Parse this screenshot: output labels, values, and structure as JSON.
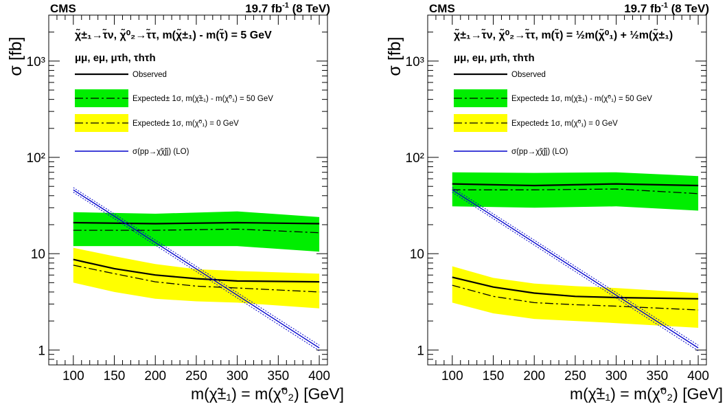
{
  "chart_data": [
    {
      "type": "line",
      "experiment": "CMS",
      "luminosity": "19.7 fb",
      "luminosity_exp": "-1",
      "energy": "(8 TeV)",
      "title_line1": "χ̃±₁→τ̃ν, χ̃⁰₂→τ̃τ,  m(χ̃±₁) - m(τ̃) = 5 GeV",
      "title_line2": "μμ, eμ, μτh, τhτh",
      "xlabel": "m(χ̃±₁) = m(χ̃⁰₂) [GeV]",
      "ylabel": "σ [fb]",
      "x_scale": "linear",
      "y_scale": "log",
      "xlim": [
        70,
        410
      ],
      "ylim": [
        0.7,
        3000
      ],
      "x_ticks": [
        100,
        150,
        200,
        250,
        300,
        350,
        400
      ],
      "y_ticks": [
        1,
        10,
        100,
        1000
      ],
      "y_tick_labels": [
        "1",
        "10",
        "10²",
        "10³"
      ],
      "legend": [
        {
          "label": "Observed",
          "style": "solid-black"
        },
        {
          "label": "Expected± 1σ, m(χ̃±₁) - m(χ̃⁰₁) = 50 GeV",
          "style": "green-band"
        },
        {
          "label": "Expected± 1σ, m(χ̃⁰₁) = 0 GeV",
          "style": "yellow-band"
        },
        {
          "label": "σ(pp→χ̃χ̃jj) (LO)",
          "style": "blue-line"
        }
      ],
      "series": [
        {
          "name": "Observed",
          "band": "green",
          "x": [
            100,
            200,
            300,
            400
          ],
          "values": [
            21,
            20.5,
            21,
            20.5
          ]
        },
        {
          "name": "Expected",
          "band": "green",
          "x": [
            100,
            200,
            300,
            400
          ],
          "values": [
            17.5,
            17.5,
            18,
            16.5
          ],
          "band_low": [
            12,
            12,
            12,
            10.5
          ],
          "band_high": [
            27,
            26,
            27.5,
            24
          ]
        },
        {
          "name": "Observed",
          "band": "yellow",
          "x": [
            100,
            150,
            200,
            250,
            300,
            400
          ],
          "values": [
            8.7,
            7,
            6,
            5.5,
            5.2,
            5.1
          ]
        },
        {
          "name": "Expected",
          "band": "yellow",
          "x": [
            100,
            150,
            200,
            250,
            300,
            400
          ],
          "values": [
            7.6,
            6.2,
            5.1,
            4.6,
            4.4,
            4.0
          ],
          "band_low": [
            5,
            4,
            3.4,
            3.2,
            3.1,
            2.7
          ],
          "band_high": [
            11.5,
            9.4,
            7.8,
            6.9,
            6.6,
            6.2
          ]
        },
        {
          "name": "σ(pp→χ̃χ̃jj) (LO)",
          "x": [
            100,
            400
          ],
          "values": [
            46,
            1.05
          ],
          "band_low": [
            43.5,
            0.98
          ],
          "band_high": [
            48.5,
            1.12
          ]
        }
      ]
    },
    {
      "type": "line",
      "experiment": "CMS",
      "luminosity": "19.7 fb",
      "luminosity_exp": "-1",
      "energy": "(8 TeV)",
      "title_line1": "χ̃±₁→τ̃ν, χ̃⁰₂→τ̃τ,  m(τ̃) = ½m(χ̃⁰₁) + ½m(χ̃±₁)",
      "title_line2": "μμ, eμ, μτh, τhτh",
      "xlabel": "m(χ̃±₁) = m(χ̃⁰₂) [GeV]",
      "ylabel": "σ [fb]",
      "x_scale": "linear",
      "y_scale": "log",
      "xlim": [
        70,
        410
      ],
      "ylim": [
        0.7,
        3000
      ],
      "x_ticks": [
        100,
        150,
        200,
        250,
        300,
        350,
        400
      ],
      "y_ticks": [
        1,
        10,
        100,
        1000
      ],
      "y_tick_labels": [
        "1",
        "10",
        "10²",
        "10³"
      ],
      "legend": [
        {
          "label": "Observed",
          "style": "solid-black"
        },
        {
          "label": "Expected± 1σ, m(χ̃±₁) - m(χ̃⁰₁) = 50 GeV",
          "style": "green-band"
        },
        {
          "label": "Expected± 1σ, m(χ̃⁰₁) = 0 GeV",
          "style": "yellow-band"
        },
        {
          "label": "σ(pp→χ̃χ̃jj) (LO)",
          "style": "blue-line"
        }
      ],
      "series": [
        {
          "name": "Observed",
          "band": "green",
          "x": [
            100,
            200,
            300,
            400
          ],
          "values": [
            53,
            51,
            53,
            51
          ]
        },
        {
          "name": "Expected",
          "band": "green",
          "x": [
            100,
            200,
            300,
            400
          ],
          "values": [
            46,
            46,
            47,
            42
          ],
          "band_low": [
            31,
            30,
            31,
            28
          ],
          "band_high": [
            70,
            69,
            70,
            64
          ]
        },
        {
          "name": "Observed",
          "band": "yellow",
          "x": [
            100,
            150,
            200,
            250,
            300,
            400
          ],
          "values": [
            5.7,
            4.5,
            3.9,
            3.6,
            3.5,
            3.4
          ]
        },
        {
          "name": "Expected",
          "band": "yellow",
          "x": [
            100,
            150,
            200,
            250,
            300,
            400
          ],
          "values": [
            4.7,
            3.6,
            3.1,
            2.95,
            2.85,
            2.6
          ],
          "band_low": [
            3.1,
            2.4,
            2.1,
            2.0,
            1.9,
            1.7
          ],
          "band_high": [
            7.4,
            5.6,
            4.9,
            4.6,
            4.4,
            3.9
          ]
        },
        {
          "name": "σ(pp→χ̃χ̃jj) (LO)",
          "x": [
            100,
            400
          ],
          "values": [
            46,
            1.05
          ],
          "band_low": [
            43.5,
            0.98
          ],
          "band_high": [
            48.5,
            1.12
          ]
        }
      ]
    }
  ],
  "colors": {
    "green": "#00ee00",
    "yellow": "#ffff00",
    "blue": "#0000cc",
    "black": "#000000"
  }
}
